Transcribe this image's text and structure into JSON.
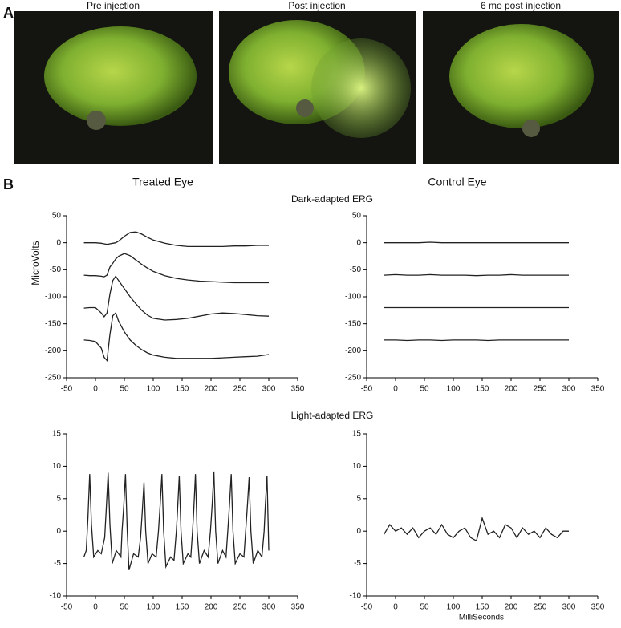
{
  "panel_a": {
    "label": "A",
    "images": [
      "Pre injection",
      "Post injection",
      "6 mo post injection"
    ]
  },
  "panel_b": {
    "label": "B",
    "left_title": "Treated Eye",
    "right_title": "Control Eye",
    "top_title": "Dark-adapted ERG",
    "bottom_title": "Light-adapted ERG",
    "ylabel": "MicroVolts",
    "xlabel": "MilliSeconds"
  },
  "chart_data": [
    {
      "type": "line",
      "xlim": [
        -50,
        350
      ],
      "xticks": [
        -50,
        0,
        50,
        100,
        150,
        200,
        250,
        300,
        350
      ],
      "ylim": [
        -250,
        50
      ],
      "yticks": [
        -250,
        -200,
        -150,
        -100,
        -50,
        0,
        50
      ],
      "x": [
        -20,
        -10,
        0,
        10,
        15,
        20,
        25,
        30,
        35,
        40,
        50,
        60,
        70,
        80,
        90,
        100,
        120,
        140,
        160,
        180,
        200,
        220,
        240,
        260,
        280,
        300
      ],
      "series": [
        {
          "color": "#222222",
          "values": [
            0,
            0,
            0,
            -1,
            -2,
            -3,
            -2,
            -1,
            0,
            3,
            12,
            19,
            20,
            16,
            10,
            5,
            -1,
            -5,
            -7,
            -7,
            -7,
            -7,
            -6,
            -6,
            -5,
            -5
          ]
        },
        {
          "color": "#222222",
          "values": [
            -60,
            -61,
            -61,
            -62,
            -63,
            -60,
            -45,
            -38,
            -30,
            -25,
            -20,
            -24,
            -32,
            -40,
            -47,
            -53,
            -61,
            -66,
            -69,
            -71,
            -72,
            -73,
            -74,
            -74,
            -74,
            -74
          ]
        },
        {
          "color": "#222222",
          "values": [
            -121,
            -120,
            -120,
            -130,
            -137,
            -130,
            -95,
            -70,
            -62,
            -70,
            -85,
            -100,
            -113,
            -125,
            -134,
            -140,
            -143,
            -142,
            -140,
            -136,
            -132,
            -130,
            -131,
            -133,
            -135,
            -136
          ]
        },
        {
          "color": "#222222",
          "values": [
            -180,
            -181,
            -183,
            -195,
            -212,
            -218,
            -170,
            -135,
            -130,
            -145,
            -165,
            -180,
            -190,
            -198,
            -204,
            -208,
            -212,
            -214,
            -214,
            -214,
            -214,
            -213,
            -212,
            -211,
            -210,
            -207
          ]
        }
      ]
    },
    {
      "type": "line",
      "xlim": [
        -50,
        350
      ],
      "xticks": [
        -50,
        0,
        50,
        100,
        150,
        200,
        250,
        300,
        350
      ],
      "ylim": [
        -250,
        50
      ],
      "yticks": [
        -250,
        -200,
        -150,
        -100,
        -50,
        0,
        50
      ],
      "x": [
        -20,
        0,
        20,
        40,
        60,
        80,
        100,
        120,
        140,
        160,
        180,
        200,
        220,
        240,
        260,
        280,
        300
      ],
      "series": [
        {
          "color": "#222222",
          "values": [
            0,
            0,
            0,
            0,
            1,
            0,
            0,
            0,
            0,
            0,
            0,
            0,
            0,
            0,
            0,
            0,
            0
          ]
        },
        {
          "color": "#222222",
          "values": [
            -60,
            -59,
            -60,
            -60,
            -59,
            -60,
            -60,
            -60,
            -61,
            -60,
            -60,
            -59,
            -60,
            -60,
            -60,
            -60,
            -60
          ]
        },
        {
          "color": "#222222",
          "values": [
            -120,
            -120,
            -120,
            -120,
            -120,
            -120,
            -120,
            -120,
            -120,
            -120,
            -120,
            -120,
            -120,
            -120,
            -120,
            -120,
            -120
          ]
        },
        {
          "color": "#222222",
          "values": [
            -180,
            -180,
            -181,
            -180,
            -180,
            -181,
            -180,
            -180,
            -180,
            -181,
            -180,
            -180,
            -180,
            -180,
            -180,
            -180,
            -180
          ]
        }
      ]
    },
    {
      "type": "line",
      "xlim": [
        -50,
        350
      ],
      "xticks": [
        -50,
        0,
        50,
        100,
        150,
        200,
        250,
        300,
        350
      ],
      "ylim": [
        -10,
        15
      ],
      "yticks": [
        -10,
        -5,
        0,
        5,
        10,
        15
      ],
      "x": [
        -20,
        -16,
        -13,
        -10,
        -7,
        -3,
        4,
        10,
        16,
        19,
        22,
        25,
        29,
        36,
        44,
        46,
        49,
        52,
        55,
        58,
        66,
        74,
        78,
        81,
        84,
        87,
        91,
        98,
        105,
        109,
        112,
        115,
        118,
        122,
        130,
        136,
        140,
        142,
        145,
        148,
        152,
        160,
        165,
        168,
        170,
        173,
        176,
        180,
        188,
        195,
        199,
        202,
        205,
        208,
        212,
        220,
        226,
        229,
        232,
        235,
        238,
        242,
        250,
        257,
        260,
        263,
        266,
        269,
        273,
        281,
        288,
        292,
        294,
        297,
        300
      ],
      "series": [
        {
          "color": "#222222",
          "values": [
            -4,
            -3,
            2,
            8.8,
            1,
            -4,
            -3,
            -3.5,
            -1,
            4,
            9,
            1,
            -5,
            -3,
            -4,
            0,
            4,
            8.8,
            0,
            -6,
            -3.5,
            -4,
            -1,
            3,
            7.5,
            0,
            -5,
            -3.5,
            -4,
            0,
            4,
            8.8,
            0,
            -5.5,
            -4,
            -4.5,
            0,
            3,
            8.5,
            0,
            -5,
            -3.5,
            -4,
            0,
            3,
            8.8,
            0,
            -5,
            -3,
            -4,
            0,
            4,
            9.2,
            0,
            -5,
            -3,
            -4,
            0,
            4,
            8.8,
            0,
            -5,
            -3.5,
            -4,
            0,
            4,
            8.3,
            0,
            -5,
            -3,
            -4,
            0,
            4,
            8.5,
            -3
          ]
        }
      ]
    },
    {
      "type": "line",
      "xlim": [
        -50,
        350
      ],
      "xticks": [
        -50,
        0,
        50,
        100,
        150,
        200,
        250,
        300,
        350
      ],
      "ylim": [
        -10,
        15
      ],
      "yticks": [
        -10,
        -5,
        0,
        5,
        10,
        15
      ],
      "x": [
        -20,
        -10,
        0,
        10,
        20,
        30,
        40,
        50,
        60,
        70,
        80,
        90,
        100,
        110,
        120,
        130,
        140,
        150,
        160,
        170,
        180,
        190,
        200,
        210,
        220,
        230,
        240,
        250,
        260,
        270,
        280,
        290,
        300
      ],
      "series": [
        {
          "color": "#222222",
          "values": [
            -0.5,
            1,
            0,
            0.5,
            -0.5,
            0.5,
            -1,
            0,
            0.5,
            -0.5,
            1,
            -0.5,
            -1,
            0,
            0.5,
            -1,
            -1.5,
            2,
            -0.5,
            0,
            -1,
            1,
            0.5,
            -1,
            0.5,
            -0.5,
            0,
            -1,
            0.5,
            -0.5,
            -1,
            0,
            0
          ]
        }
      ]
    }
  ]
}
